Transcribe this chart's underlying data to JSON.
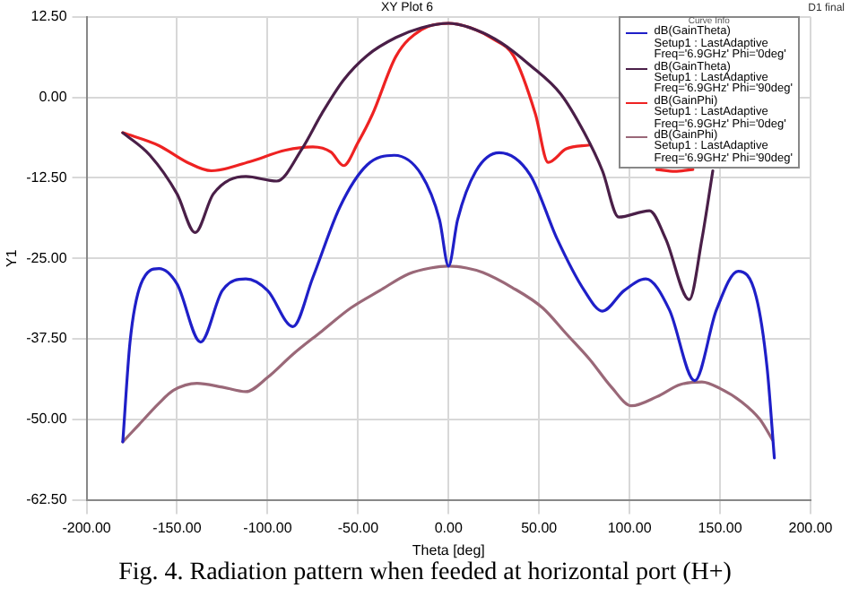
{
  "chart_data": {
    "type": "line",
    "title": "XY Plot 6",
    "xlabel": "Theta [deg]",
    "ylabel": "Y1",
    "legend_title": "Curve Info",
    "legend": "top right",
    "grid": true,
    "marker": "none",
    "line_style": "solid",
    "xlim": [
      -200,
      200
    ],
    "ylim": [
      -62.5,
      12.5
    ],
    "xticks": [
      {
        "value": -200,
        "label": "-200.00"
      },
      {
        "value": -150,
        "label": "-150.00"
      },
      {
        "value": -100,
        "label": "-100.00"
      },
      {
        "value": -50,
        "label": "-50.00"
      },
      {
        "value": 0,
        "label": "0.00"
      },
      {
        "value": 50,
        "label": "50.00"
      },
      {
        "value": 100,
        "label": "100.00"
      },
      {
        "value": 150,
        "label": "150.00"
      },
      {
        "value": 200,
        "label": "200.00"
      }
    ],
    "yticks": [
      {
        "value": -62.5,
        "label": "-62.50"
      },
      {
        "value": -50,
        "label": "-50.00"
      },
      {
        "value": -37.5,
        "label": "-37.50"
      },
      {
        "value": -25,
        "label": "-25.00"
      },
      {
        "value": -12.5,
        "label": "-12.50"
      },
      {
        "value": 0,
        "label": "0.00"
      },
      {
        "value": 12.5,
        "label": "12.50"
      }
    ],
    "annotations": [
      "D1 final",
      "Fig. 4. Radiation pattern when feeded at horizontal port (H+)"
    ],
    "series": [
      {
        "name": "dB(GainTheta)\nSetup1 : LastAdaptive\nFreq='6.9GHz' Phi='0deg'",
        "color": "#1f1fc8",
        "x": [
          -180,
          -176,
          -170,
          -160,
          -150,
          -137,
          -125,
          -112,
          -100,
          -86,
          -75,
          -60,
          -45,
          -30,
          -15,
          -5,
          0,
          5,
          15,
          28,
          45,
          60,
          75,
          85,
          97,
          109,
          122,
          136,
          148,
          160,
          170,
          176,
          180
        ],
        "values": [
          -53.5,
          -38,
          -29,
          -26.6,
          -29,
          -38,
          -30,
          -28.2,
          -30,
          -35.6,
          -28,
          -17,
          -10.5,
          -9,
          -12,
          -19,
          -26.2,
          -19,
          -11.5,
          -8.6,
          -12,
          -22,
          -30,
          -33.2,
          -30,
          -28.2,
          -33,
          -44,
          -33,
          -27,
          -31,
          -42,
          -56
        ]
      },
      {
        "name": "dB(GainTheta)\nSetup1 : LastAdaptive\nFreq='6.9GHz' Phi='90deg'",
        "color": "#4a1f48",
        "x": [
          -180,
          -165,
          -150,
          -140,
          -130,
          -112,
          -95,
          -81,
          -70,
          -58,
          -45,
          -29,
          -15,
          0,
          15,
          29,
          45,
          62,
          75,
          85,
          94,
          111,
          120,
          133,
          140,
          146
        ],
        "values": [
          -5.5,
          -9,
          -15,
          -21,
          -15,
          -12.3,
          -13,
          -8,
          -2.5,
          2.7,
          6.5,
          9.3,
          10.8,
          11.5,
          10.5,
          8.5,
          5,
          0.5,
          -5.5,
          -11.4,
          -18.6,
          -17.6,
          -22,
          -31.4,
          -22,
          -11.4
        ]
      },
      {
        "name": "dB(GainPhi)\nSetup1 : LastAdaptive\nFreq='6.9GHz' Phi='0deg'",
        "color": "#ee2222",
        "x": [
          -180,
          -160,
          -145,
          -131,
          -110,
          -90,
          -75,
          -65,
          -58,
          -50,
          -42,
          -29,
          -15,
          0,
          15,
          25,
          36,
          48,
          55,
          65,
          78,
          90,
          115,
          125,
          135
        ],
        "values": [
          -5.5,
          -7.5,
          -10,
          -11.4,
          -10,
          -8.2,
          -7.7,
          -8.5,
          -10.6,
          -7,
          -2.6,
          6.4,
          10.5,
          11.5,
          10.5,
          9,
          6.4,
          -2.6,
          -10.1,
          -8,
          -7.4,
          null,
          -11.2,
          -11.5,
          -11.2
        ]
      },
      {
        "name": "dB(GainPhi)\nSetup1 : LastAdaptive\nFreq='6.9GHz' Phi='90deg'",
        "color": "#9a6878",
        "x": [
          -180,
          -171,
          -160,
          -152,
          -139,
          -125,
          -112,
          -100,
          -86,
          -70,
          -54,
          -38,
          -22,
          -10,
          0,
          10,
          19,
          35,
          52,
          65,
          78,
          90,
          101,
          115,
          128,
          140,
          150,
          162,
          172,
          179
        ],
        "values": [
          -53.5,
          -50.8,
          -47.5,
          -45.5,
          -44.4,
          -45,
          -45.7,
          -43.5,
          -39.9,
          -36.3,
          -32.7,
          -30,
          -27.4,
          -26.5,
          -26.2,
          -26.5,
          -27.2,
          -29.5,
          -32.7,
          -36.7,
          -40.7,
          -45,
          -47.9,
          -46.5,
          -44.6,
          -44.2,
          -45.2,
          -47.3,
          -50,
          -53.2
        ]
      }
    ]
  }
}
